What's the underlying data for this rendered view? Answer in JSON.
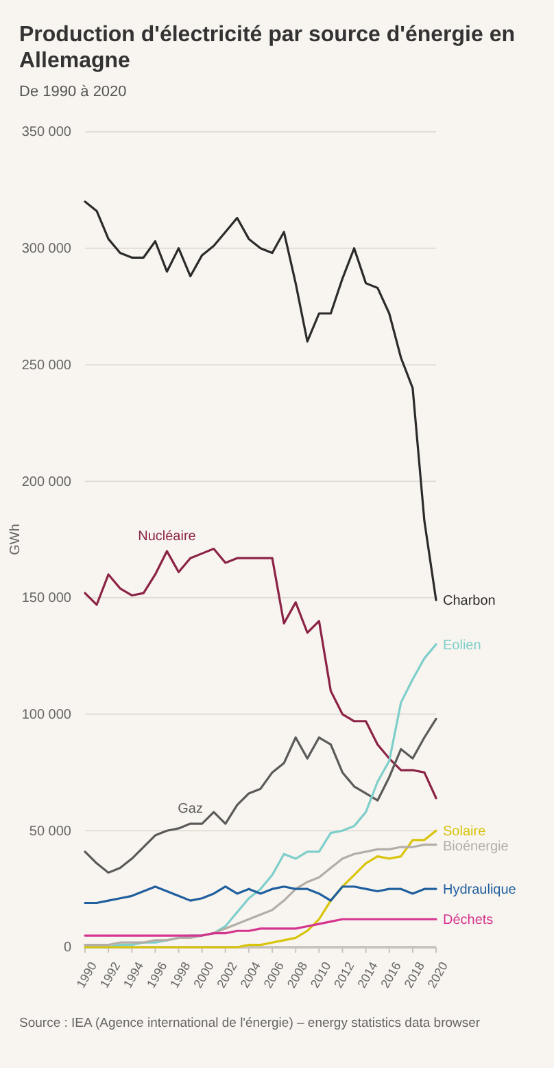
{
  "chart_data": {
    "type": "line",
    "title": "Production d'électricité par source d'énergie en Allemagne",
    "subtitle": "De 1990 à 2020",
    "ylabel": "GWh",
    "x": [
      1990,
      1991,
      1992,
      1993,
      1994,
      1995,
      1996,
      1997,
      1998,
      1999,
      2000,
      2001,
      2002,
      2003,
      2004,
      2005,
      2006,
      2007,
      2008,
      2009,
      2010,
      2011,
      2012,
      2013,
      2014,
      2015,
      2016,
      2017,
      2018,
      2019,
      2020
    ],
    "xlim": [
      1990,
      2020
    ],
    "xticks": [
      1990,
      1992,
      1994,
      1996,
      1998,
      2000,
      2002,
      2004,
      2006,
      2008,
      2010,
      2012,
      2014,
      2016,
      2018,
      2020
    ],
    "ylim": [
      0,
      350000
    ],
    "yticks": [
      0,
      {
        "value": 50000,
        "label": "50 000"
      },
      {
        "value": 100000,
        "label": "100 000"
      },
      {
        "value": 150000,
        "label": "150 000"
      },
      {
        "value": 200000,
        "label": "200 000"
      },
      {
        "value": 250000,
        "label": "250 000"
      },
      {
        "value": 300000,
        "label": "300 000"
      },
      {
        "value": 350000,
        "label": "350 000"
      }
    ],
    "grid": "y",
    "series": [
      {
        "name": "Charbon",
        "color": "#2b2b2b",
        "values": [
          320000,
          316000,
          304000,
          298000,
          296000,
          296000,
          303000,
          290000,
          300000,
          288000,
          297000,
          301000,
          307000,
          313000,
          304000,
          300000,
          298000,
          307000,
          285000,
          260000,
          272000,
          272000,
          287000,
          300000,
          285000,
          283000,
          272000,
          253000,
          240000,
          183000,
          149000
        ]
      },
      {
        "name": "Nucléaire",
        "color": "#8b2346",
        "values": [
          152000,
          147000,
          160000,
          154000,
          151000,
          152000,
          160000,
          170000,
          161000,
          167000,
          169000,
          171000,
          165000,
          167000,
          167000,
          167000,
          167000,
          139000,
          148000,
          135000,
          140000,
          110000,
          100000,
          97000,
          97000,
          87000,
          81000,
          76000,
          76000,
          75000,
          64000
        ]
      },
      {
        "name": "Gaz",
        "color": "#5a5a5a",
        "values": [
          41000,
          36000,
          32000,
          34000,
          38000,
          43000,
          48000,
          50000,
          51000,
          53000,
          53000,
          58000,
          53000,
          61000,
          66000,
          68000,
          75000,
          79000,
          90000,
          81000,
          90000,
          87000,
          75000,
          69000,
          66000,
          63000,
          73000,
          85000,
          81000,
          90000,
          98000
        ]
      },
      {
        "name": "Eolien",
        "color": "#7ecfcb",
        "values": [
          0,
          0,
          0,
          1000,
          1000,
          2000,
          2000,
          3000,
          4000,
          5000,
          5000,
          6000,
          9000,
          15000,
          21000,
          25000,
          31000,
          40000,
          38000,
          41000,
          41000,
          49000,
          50000,
          52000,
          58000,
          71000,
          80000,
          105000,
          115000,
          124000,
          130000
        ]
      },
      {
        "name": "Solaire",
        "color": "#d8c40a",
        "values": [
          0,
          0,
          0,
          0,
          0,
          0,
          0,
          0,
          0,
          0,
          0,
          0,
          0,
          0,
          1000,
          1000,
          2000,
          3000,
          4000,
          7000,
          12000,
          20000,
          26000,
          31000,
          36000,
          39000,
          38000,
          39000,
          46000,
          46000,
          50000
        ]
      },
      {
        "name": "Bioénergie",
        "color": "#b3ada6",
        "values": [
          1000,
          1000,
          1000,
          2000,
          2000,
          2000,
          3000,
          3000,
          4000,
          4000,
          5000,
          6000,
          8000,
          10000,
          12000,
          14000,
          16000,
          20000,
          25000,
          28000,
          30000,
          34000,
          38000,
          40000,
          41000,
          42000,
          42000,
          43000,
          43000,
          44000,
          44000
        ]
      },
      {
        "name": "Hydraulique",
        "color": "#1f5f9e",
        "values": [
          19000,
          19000,
          20000,
          21000,
          22000,
          24000,
          26000,
          24000,
          22000,
          20000,
          21000,
          23000,
          26000,
          23000,
          25000,
          23000,
          25000,
          26000,
          25000,
          25000,
          23000,
          20000,
          26000,
          26000,
          25000,
          24000,
          25000,
          25000,
          23000,
          25000,
          25000
        ]
      },
      {
        "name": "Déchets",
        "color": "#d4358f",
        "values": [
          5000,
          5000,
          5000,
          5000,
          5000,
          5000,
          5000,
          5000,
          5000,
          5000,
          5000,
          6000,
          6000,
          7000,
          7000,
          8000,
          8000,
          8000,
          8000,
          9000,
          10000,
          11000,
          12000,
          12000,
          12000,
          12000,
          12000,
          12000,
          12000,
          12000,
          12000
        ]
      }
    ],
    "annotations": [
      "Source : IEA (Agence international de l'énergie) – energy statistics data browser"
    ]
  }
}
